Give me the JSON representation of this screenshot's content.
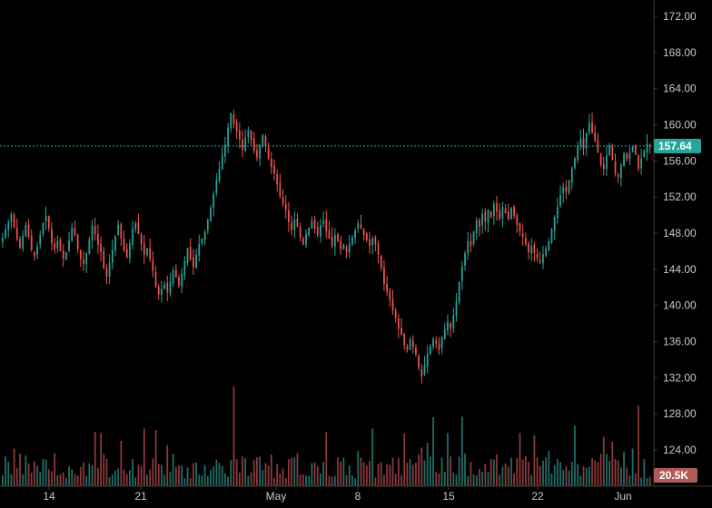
{
  "colors": {
    "background": "#000000",
    "up": "#26a69a",
    "down": "#ef5350",
    "up_volume": "#1f6f68",
    "down_volume": "#8f3a3a",
    "axis_text": "#c8c8c8",
    "axis_line": "#3a3a3a",
    "price_line": "#26a69a"
  },
  "price_axis": {
    "ticks": [
      "172.00",
      "168.00",
      "164.00",
      "160.00",
      "156.00",
      "152.00",
      "148.00",
      "144.00",
      "140.00",
      "136.00",
      "132.00",
      "128.00",
      "124.00"
    ]
  },
  "last_price": {
    "label": "157.64",
    "value": 157.64
  },
  "volume_tag": {
    "label": "20.5K"
  },
  "time_axis": {
    "labels": [
      "14",
      "21",
      "May",
      "8",
      "15",
      "22",
      "Jun"
    ]
  },
  "chart_data": {
    "type": "candlestick",
    "title": "",
    "ylim": [
      124,
      172
    ],
    "x_labels": [
      "14",
      "21",
      "May",
      "8",
      "15",
      "22",
      "Jun"
    ],
    "current_price": 157.64,
    "close_series": [
      147.5,
      148.4,
      149.2,
      150.1,
      148.6,
      147.3,
      146.4,
      147.7,
      148.9,
      147.6,
      146.1,
      145.4,
      146.6,
      147.8,
      149.1,
      149.9,
      148.5,
      146.9,
      146.2,
      147.1,
      146.0,
      145.2,
      145.9,
      147.2,
      148.6,
      147.8,
      146.2,
      145.1,
      144.6,
      145.8,
      147.3,
      148.9,
      147.9,
      146.7,
      145.9,
      144.1,
      143.2,
      144.7,
      146.2,
      147.6,
      148.9,
      147.4,
      146.1,
      145.3,
      146.9,
      148.5,
      149.1,
      147.9,
      146.8,
      145.6,
      146.3,
      145.1,
      143.8,
      142.1,
      141.2,
      141.8,
      142.3,
      141.5,
      142.6,
      143.9,
      143.1,
      142.2,
      143.5,
      144.9,
      146.3,
      145.1,
      144.2,
      145.6,
      146.8,
      147.4,
      148.1,
      149.5,
      150.8,
      152.3,
      153.9,
      155.1,
      156.6,
      157.8,
      159.7,
      161.3,
      160.1,
      159.2,
      158.4,
      157.2,
      158.6,
      159.4,
      158.3,
      157.1,
      156.4,
      157.8,
      158.9,
      157.6,
      156.2,
      155.3,
      154.6,
      153.4,
      152.1,
      151.3,
      150.6,
      149.2,
      148.4,
      149.5,
      148.7,
      147.5,
      146.8,
      147.9,
      148.6,
      149.3,
      148.5,
      147.8,
      148.9,
      149.4,
      148.2,
      147.4,
      146.6,
      147.8,
      147.1,
      146.2,
      146.7,
      145.9,
      146.8,
      147.5,
      148.3,
      149.1,
      148.5,
      147.8,
      147.2,
      146.6,
      147.4,
      146.8,
      145.6,
      144.1,
      142.4,
      141.5,
      140.6,
      139.4,
      138.6,
      137.4,
      136.8,
      135.6,
      135.1,
      136.2,
      135.4,
      134.6,
      133.1,
      132.1,
      133.4,
      134.6,
      135.5,
      136.3,
      135.8,
      135.1,
      136.5,
      137.4,
      138.2,
      137.5,
      138.9,
      140.4,
      142.6,
      144.3,
      145.8,
      147.1,
      146.6,
      148.2,
      149.4,
      148.7,
      150.1,
      149.3,
      150.6,
      149.8,
      151.2,
      150.4,
      149.6,
      150.9,
      150.2,
      149.5,
      150.8,
      149.9,
      148.9,
      148.2,
      147.6,
      146.8,
      145.9,
      146.6,
      145.8,
      145.2,
      144.8,
      145.7,
      146.3,
      147.1,
      148.4,
      149.8,
      150.9,
      152.2,
      153.1,
      152.6,
      153.8,
      155.2,
      156.3,
      157.6,
      158.4,
      157.3,
      159.1,
      160.2,
      159.1,
      158.2,
      156.9,
      155.6,
      155.1,
      156.6,
      157.7,
      156.1,
      154.6,
      154.2,
      155.6,
      156.8,
      156.2,
      156.9,
      157.6,
      156.7,
      155.1,
      156.3,
      157.1,
      157.9,
      157.64
    ],
    "volume_scale": {
      "min": 0,
      "max": 100
    }
  }
}
